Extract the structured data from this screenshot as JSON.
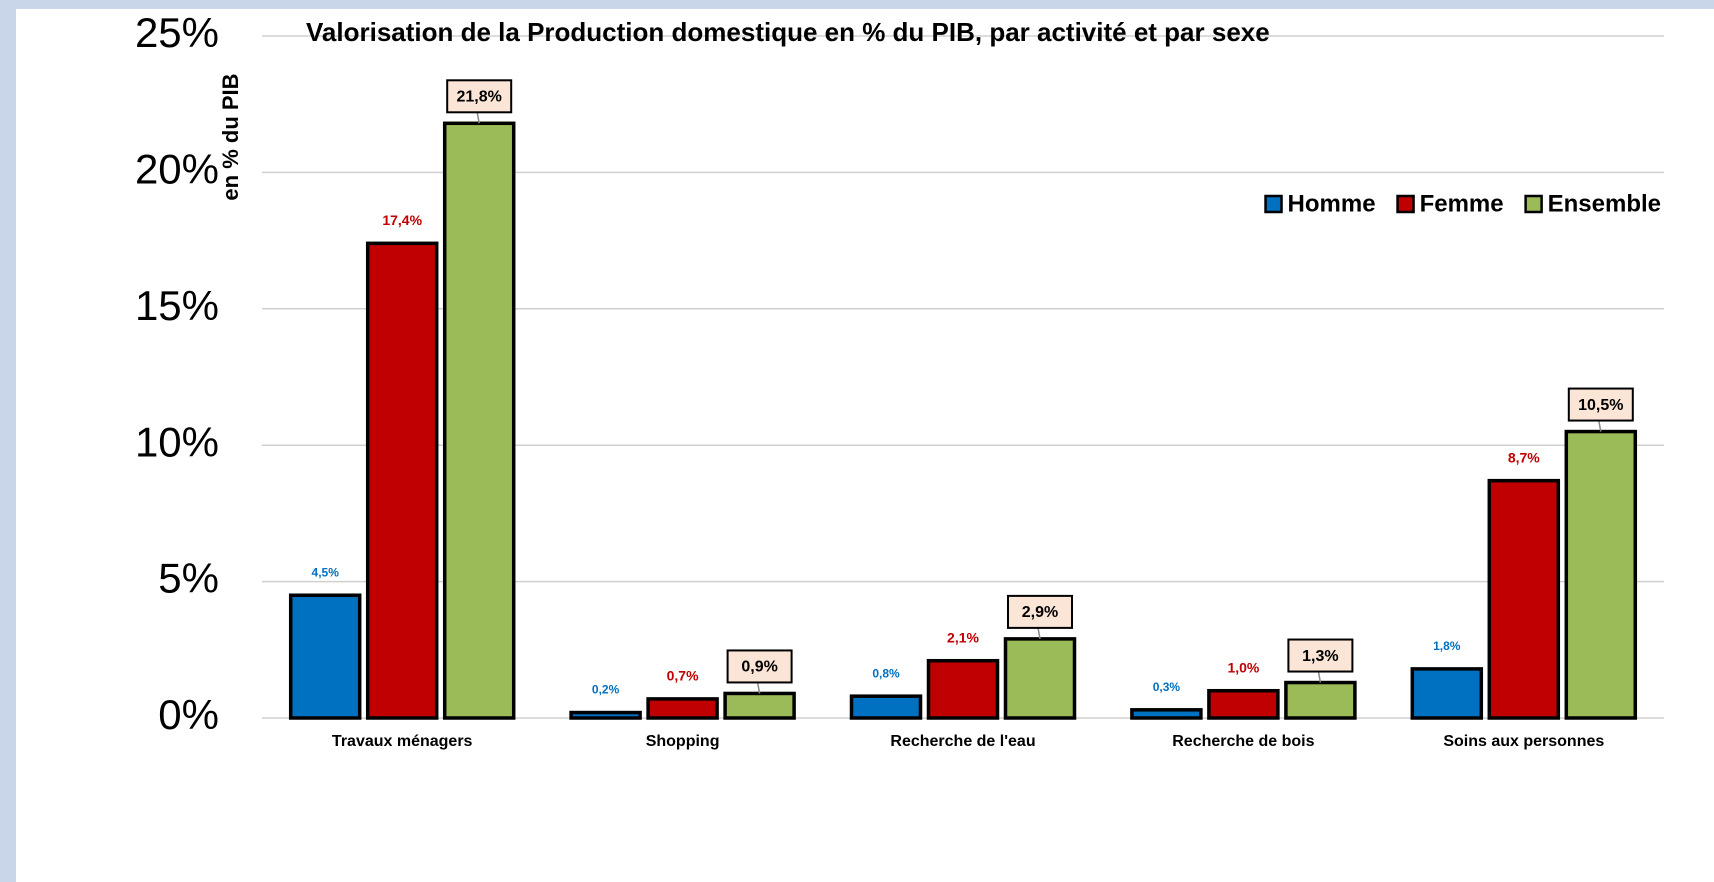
{
  "chart_data": {
    "type": "bar",
    "title": "Valorisation de la Production domestique en % du PIB, par activité et par sexe",
    "y_label": "en % du PIB",
    "categories": [
      "Travaux ménagers",
      "Shopping",
      "Recherche de l'eau",
      "Recherche de bois",
      "Soins aux personnes"
    ],
    "series": [
      {
        "name": "Homme",
        "color": "#0070c0",
        "values": [
          4.5,
          0.2,
          0.8,
          0.3,
          1.8
        ],
        "value_labels": [
          "4,5%",
          "0,2%",
          "0,8%",
          "0,3%",
          "1,8%"
        ]
      },
      {
        "name": "Femme",
        "color": "#c00000",
        "values": [
          17.4,
          0.7,
          2.1,
          1.0,
          8.7
        ],
        "value_labels": [
          "17,4%",
          "0,7%",
          "2,1%",
          "1,0%",
          "8,7%"
        ]
      },
      {
        "name": "Ensemble",
        "color": "#9bbb59",
        "values": [
          21.8,
          0.9,
          2.9,
          1.3,
          10.5
        ],
        "value_labels": [
          "21,8%",
          "0,9%",
          "2,9%",
          "1,3%",
          "10,5%"
        ]
      }
    ],
    "ylim": [
      0,
      25
    ],
    "yticks": [
      {
        "value": 0,
        "label": "0%"
      },
      {
        "value": 5,
        "label": "5%"
      },
      {
        "value": 10,
        "label": "10%"
      },
      {
        "value": 15,
        "label": "15%"
      },
      {
        "value": 20,
        "label": "20%"
      },
      {
        "value": 25,
        "label": "25%"
      }
    ],
    "grid": true,
    "legend": "upper right"
  }
}
